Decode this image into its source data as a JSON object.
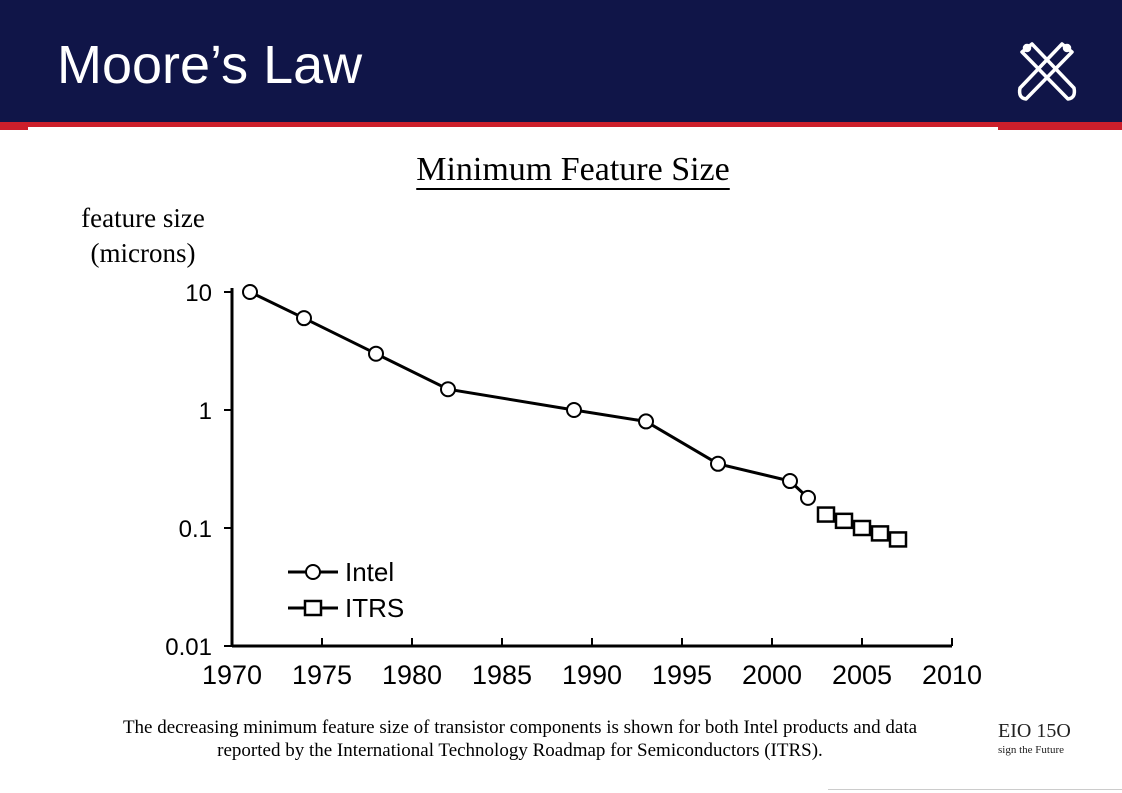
{
  "slide": {
    "title": "Moore’s Law",
    "caption_line1": "The decreasing minimum feature size of transistor components is shown for both Intel products and data",
    "caption_line2": "reported by the International Technology Roadmap for Semiconductors (ITRS).",
    "brand_code": "EIO 15O",
    "brand_tagline": "sign the Future",
    "colors": {
      "header": "#101548",
      "accent": "#cc1f2b"
    },
    "logo_icon": "crossed-tools-icon"
  },
  "chart_data": {
    "type": "line",
    "title": "Minimum Feature Size",
    "ylabel_line1": "feature size",
    "ylabel_line2": "(microns)",
    "xlabel": "",
    "y_scale": "log",
    "xlim": [
      1970,
      2010
    ],
    "ylim": [
      0.01,
      10
    ],
    "x_ticks": [
      "1970",
      "1975",
      "1980",
      "1985",
      "1990",
      "1995",
      "2000",
      "2005",
      "2010"
    ],
    "y_ticks": [
      "10",
      "1",
      "0.1",
      "0.01"
    ],
    "grid": false,
    "legend_position": "bottom-left",
    "series": [
      {
        "name": "Intel",
        "marker": "circle",
        "points": [
          {
            "x": 1971,
            "y": 10
          },
          {
            "x": 1974,
            "y": 6
          },
          {
            "x": 1978,
            "y": 3
          },
          {
            "x": 1982,
            "y": 1.5
          },
          {
            "x": 1989,
            "y": 1
          },
          {
            "x": 1993,
            "y": 0.8
          },
          {
            "x": 1997,
            "y": 0.35
          },
          {
            "x": 2001,
            "y": 0.25
          },
          {
            "x": 2002,
            "y": 0.18
          }
        ]
      },
      {
        "name": "ITRS",
        "marker": "square",
        "points": [
          {
            "x": 2003,
            "y": 0.13
          },
          {
            "x": 2004,
            "y": 0.115
          },
          {
            "x": 2005,
            "y": 0.1
          },
          {
            "x": 2006,
            "y": 0.09
          },
          {
            "x": 2007,
            "y": 0.08
          }
        ]
      }
    ]
  }
}
